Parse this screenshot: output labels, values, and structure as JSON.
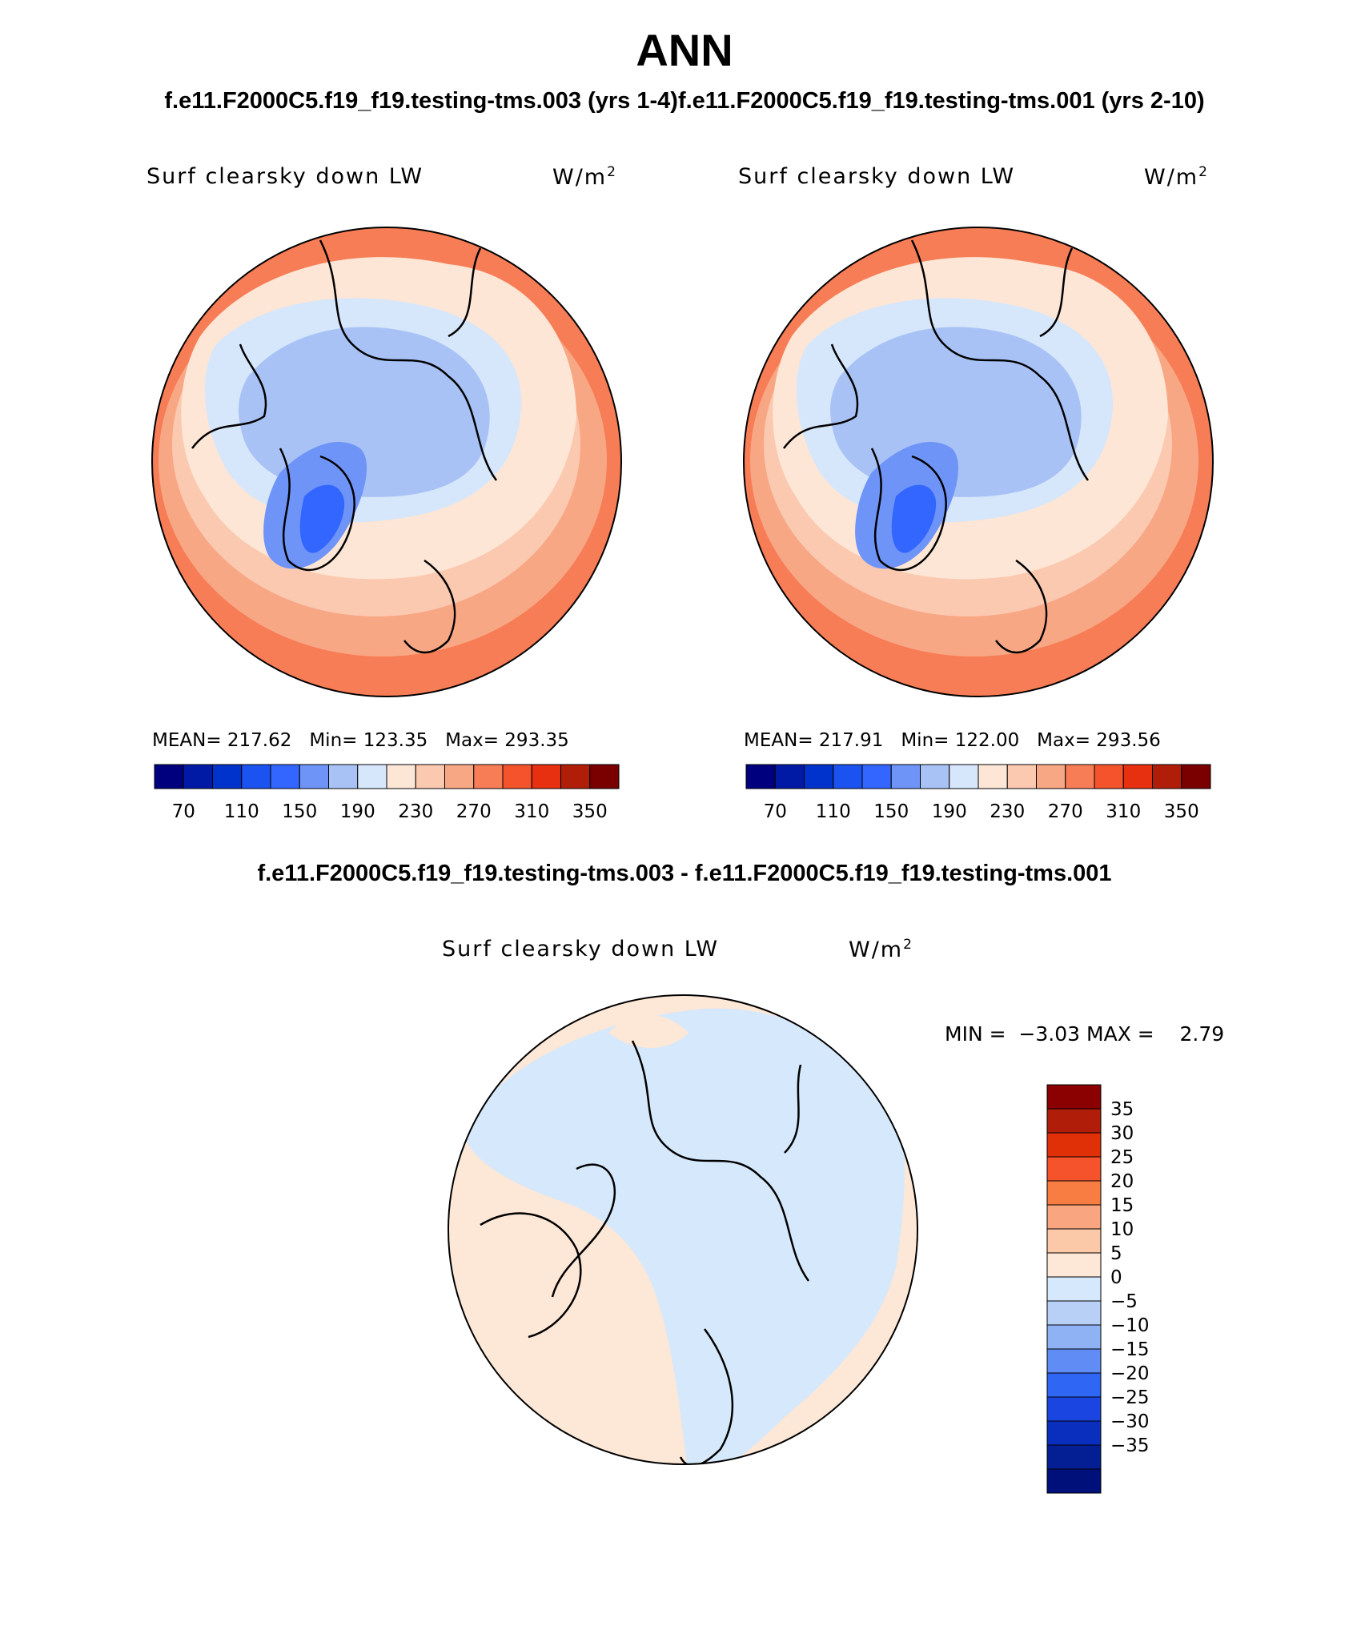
{
  "title": "ANN",
  "case_titles": {
    "left": "f.e11.F2000C5.f19_f19.testing-tms.003 (yrs 1-4)",
    "right": "f.e11.F2000C5.f19_f19.testing-tms.001 (yrs 2-10)"
  },
  "panels": [
    {
      "variable": "Surf clearsky down LW",
      "units_base": "W/m",
      "units_exp": "2",
      "mean_label": "MEAN=",
      "mean": "217.62",
      "min_label": "Min=",
      "min": "123.35",
      "max_label": "Max=",
      "max": "293.35"
    },
    {
      "variable": "Surf clearsky down LW",
      "units_base": "W/m",
      "units_exp": "2",
      "mean_label": "MEAN=",
      "mean": "217.91",
      "min_label": "Min=",
      "min": "122.00",
      "max_label": "Max=",
      "max": "293.56"
    }
  ],
  "colorbar": {
    "colors": [
      "#00007f",
      "#001aa6",
      "#0033cc",
      "#1a53f0",
      "#3366ff",
      "#6f94f7",
      "#a8c2f5",
      "#d6e6fb",
      "#fde6d6",
      "#fbc9b0",
      "#f8a785",
      "#f77d56",
      "#f5532c",
      "#e63010",
      "#b01e0a",
      "#7a0000"
    ],
    "labels": [
      "70",
      "110",
      "150",
      "190",
      "230",
      "270",
      "310",
      "350"
    ]
  },
  "difference": {
    "title": "f.e11.F2000C5.f19_f19.testing-tms.003 - f.e11.F2000C5.f19_f19.testing-tms.001",
    "variable": "Surf clearsky down LW",
    "units_base": "W/m",
    "units_exp": "2",
    "min_label": "MIN =",
    "min": "−3.03",
    "max_label": "MAX =",
    "max": "2.79",
    "legend": {
      "colors": [
        "#8b0000",
        "#b01e0a",
        "#e03008",
        "#f5532c",
        "#f77d42",
        "#f8a580",
        "#fbc8a8",
        "#fde7d6",
        "#d6e8fb",
        "#b8cff6",
        "#8fb2f5",
        "#5f8cf5",
        "#2f66f3",
        "#1a45e0",
        "#0a2fbf",
        "#041e94",
        "#00107a"
      ],
      "labels": [
        "35",
        "30",
        "25",
        "20",
        "15",
        "10",
        "5",
        "0",
        "−5",
        "−10",
        "−15",
        "−20",
        "−25",
        "−30",
        "−35"
      ]
    }
  },
  "map_colors": {
    "ring1": "#f77d56",
    "ring2": "#f8a785",
    "ring3": "#fbc9b0",
    "ring4": "#fde6d6",
    "cold1": "#d6e6fb",
    "cold2": "#a8c2f5",
    "cold3": "#6f94f7",
    "cold4": "#3366ff",
    "diff_warm": "#fde7d6",
    "diff_cool": "#d6e8fb",
    "coast": "#000000"
  }
}
